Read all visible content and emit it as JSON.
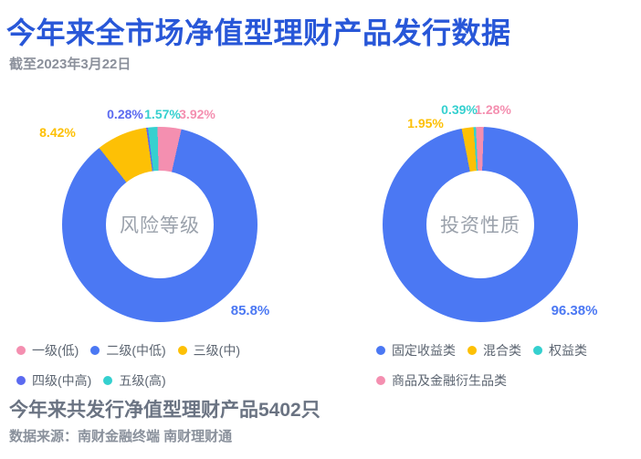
{
  "header": {
    "title": "今年来全市场净值型理财产品发行数据",
    "subtitle": "截至2023年3月22日"
  },
  "theme": {
    "background": "#ffffff",
    "title_color": "#2857d8",
    "subtitle_color": "#8b909b",
    "center_label_color": "#9aa1ab",
    "legend_text_color": "#5c6571",
    "summary_color": "#6a7382",
    "source_color": "#8a919c"
  },
  "chart_data": [
    {
      "type": "pie",
      "donut": true,
      "title": "风险等级",
      "center_label": "风险等级",
      "start_angle_deg": -8,
      "legend_position": "bottom",
      "slices": [
        {
          "name": "四级(中高)",
          "value": 0.28,
          "display": "0.28%",
          "color": "#5b6af0"
        },
        {
          "name": "五级(高)",
          "value": 1.57,
          "display": "1.57%",
          "color": "#35d0cf"
        },
        {
          "name": "一级(低)",
          "value": 3.92,
          "display": "3.92%",
          "color": "#f48fb0"
        },
        {
          "name": "二级(中低)",
          "value": 85.8,
          "display": "85.8%",
          "color": "#4b78f3"
        },
        {
          "name": "三级(中)",
          "value": 8.42,
          "display": "8.42%",
          "color": "#fdc005"
        }
      ],
      "legend": [
        {
          "label": "一级(低)",
          "color": "#f48fb0"
        },
        {
          "label": "二级(中低)",
          "color": "#4b78f3"
        },
        {
          "label": "三级(中)",
          "color": "#fdc005"
        },
        {
          "label": "四级(中高)",
          "color": "#5b6af0"
        },
        {
          "label": "五级(高)",
          "color": "#35d0cf"
        }
      ]
    },
    {
      "type": "pie",
      "donut": true,
      "title": "投资性质",
      "center_label": "投资性质",
      "start_angle_deg": -11,
      "legend_position": "bottom",
      "slices": [
        {
          "name": "混合类",
          "value": 1.95,
          "display": "1.95%",
          "color": "#fdc005"
        },
        {
          "name": "权益类",
          "value": 0.39,
          "display": "0.39%",
          "color": "#35d0cf"
        },
        {
          "name": "商品及金融衍生品类",
          "value": 1.28,
          "display": "1.28%",
          "color": "#f48fb0"
        },
        {
          "name": "固定收益类",
          "value": 96.38,
          "display": "96.38%",
          "color": "#4b78f3"
        }
      ],
      "legend": [
        {
          "label": "固定收益类",
          "color": "#4b78f3"
        },
        {
          "label": "混合类",
          "color": "#fdc005"
        },
        {
          "label": "权益类",
          "color": "#35d0cf"
        },
        {
          "label": "商品及金融衍生品类",
          "color": "#f48fb0"
        }
      ]
    }
  ],
  "footer": {
    "summary": "今年来共发行净值型理财产品5402只",
    "source": "数据来源：南财金融终端 南财理财通"
  }
}
